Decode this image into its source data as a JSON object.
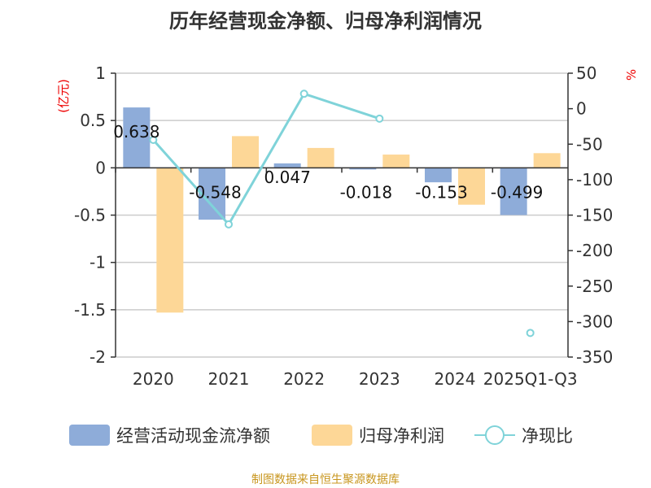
{
  "chart_data": {
    "type": "bar",
    "title": "历年经营现金净额、归母净利润情况",
    "ylabel_left": "(亿元)",
    "ylabel_right": "%",
    "categories": [
      "2020",
      "2021",
      "2022",
      "2023",
      "2024",
      "2025Q1-Q3"
    ],
    "left_ticks": [
      "1",
      "0.5",
      "0",
      "-0.5",
      "-1",
      "-1.5",
      "-2"
    ],
    "right_ticks": [
      "50",
      "0",
      "-50",
      "-100",
      "-150",
      "-200",
      "-250",
      "-300",
      "-350"
    ],
    "ylim_left": [
      -2,
      1
    ],
    "ylim_right": [
      -350,
      50
    ],
    "grid": true,
    "legend_placement": "bottom",
    "series": [
      {
        "name": "经营活动现金流净额",
        "axis": "left",
        "kind": "bar",
        "color": "#8eacd9",
        "values": [
          0.638,
          -0.548,
          0.047,
          -0.018,
          -0.153,
          -0.499
        ],
        "labels": [
          "0.638",
          "-0.548",
          "0.047",
          "-0.018",
          "-0.153",
          "-0.499"
        ]
      },
      {
        "name": "归母净利润",
        "axis": "left",
        "kind": "bar",
        "color": "#fdd797",
        "values": [
          -1.53,
          0.335,
          0.21,
          0.14,
          -0.39,
          0.155
        ]
      },
      {
        "name": "净现比",
        "axis": "right",
        "kind": "line",
        "color": "#7fd3d9",
        "values": [
          -44,
          -163,
          21,
          -14,
          null,
          -316
        ]
      }
    ]
  },
  "footer": "制图数据来自恒生聚源数据库"
}
